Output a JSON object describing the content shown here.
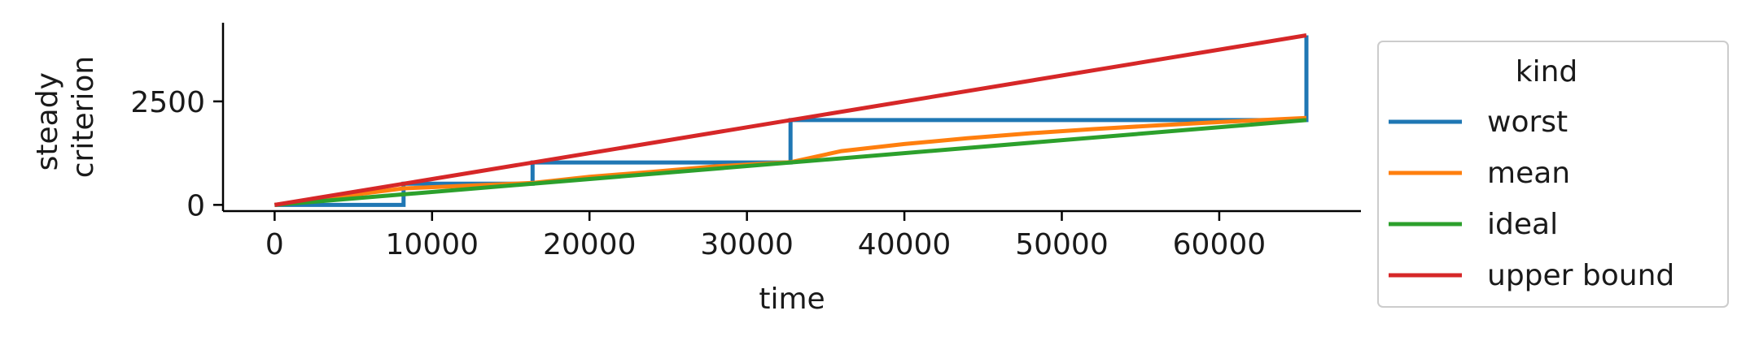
{
  "chart_data": {
    "type": "line",
    "title": "",
    "xlabel": "time",
    "ylabel": [
      "steady",
      "criterion"
    ],
    "xlim": [
      -3277,
      69000
    ],
    "ylim": [
      -150,
      4400
    ],
    "xticks": [
      0,
      10000,
      20000,
      30000,
      40000,
      50000,
      60000
    ],
    "yticks": [
      0,
      2500
    ],
    "grid": false,
    "legend": {
      "title": "kind",
      "placement": "outside-right"
    },
    "series": [
      {
        "name": "worst",
        "color": "#1f77b4",
        "x": [
          0,
          8192,
          8192,
          16384,
          16384,
          32768,
          32768,
          65536,
          65536
        ],
        "y": [
          0,
          0,
          512,
          512,
          1024,
          1024,
          2048,
          2048,
          4096
        ]
      },
      {
        "name": "mean",
        "color": "#ff7f0e",
        "x": [
          0,
          8192,
          16384,
          20000,
          24000,
          28000,
          32768,
          36000,
          40000,
          44000,
          48000,
          52000,
          56000,
          60000,
          65536
        ],
        "y": [
          0,
          400,
          530,
          680,
          800,
          930,
          1030,
          1300,
          1470,
          1610,
          1730,
          1830,
          1920,
          2000,
          2100
        ]
      },
      {
        "name": "ideal",
        "color": "#2ca02c",
        "x": [
          0,
          65536
        ],
        "y": [
          0,
          2048
        ]
      },
      {
        "name": "upper bound",
        "color": "#d62728",
        "x": [
          0,
          65536
        ],
        "y": [
          0,
          4096
        ]
      }
    ]
  }
}
